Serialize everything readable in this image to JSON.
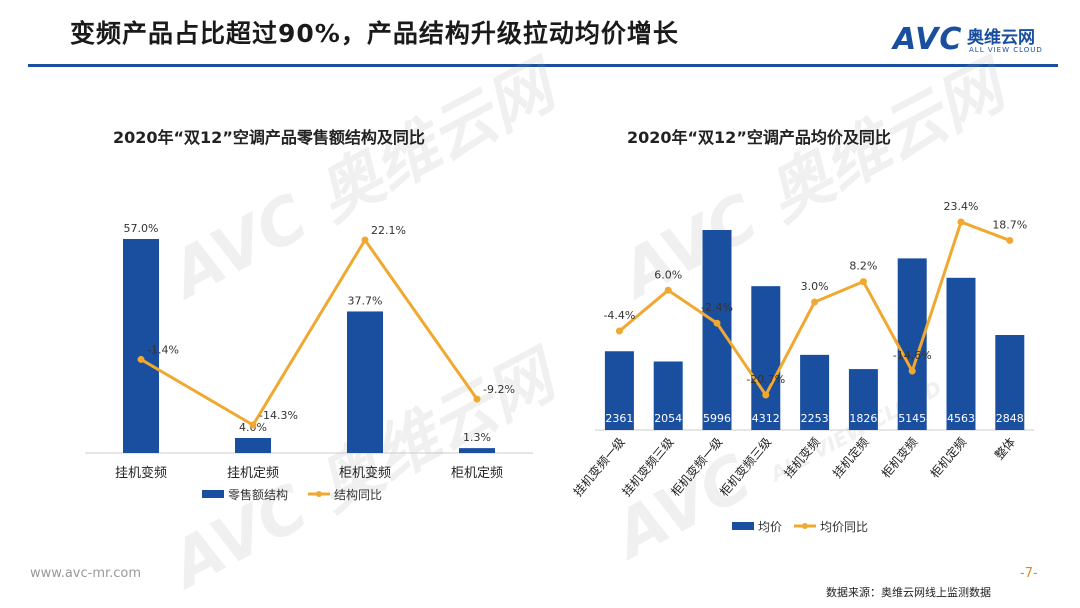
{
  "header": {
    "title": "变频产品占比超过90%，产品结构升级拉动均价增长"
  },
  "logo": {
    "brand": "AVC",
    "name_cn": "奥维云网",
    "name_en": "ALL VIEW CLOUD"
  },
  "watermark": {
    "brand": "AVC",
    "name_cn": "奥维云网",
    "name_en": "ALL VIEW CLOUD"
  },
  "colors": {
    "bar": "#1a4fa0",
    "line": "#f0a830",
    "accent": "#1a4fa0"
  },
  "footer": {
    "url": "www.avc-mr.com",
    "page": "-7-",
    "source": "数据来源：奥维云网线上监测数据"
  },
  "chart_data": [
    {
      "type": "bar",
      "title": "2020年“双12”空调产品零售额结构及同比",
      "categories": [
        "挂机变频",
        "挂机定频",
        "柜机变频",
        "柜机定频"
      ],
      "series": [
        {
          "name": "零售额结构",
          "kind": "bar",
          "values": [
            57.0,
            4.0,
            37.7,
            1.3
          ],
          "labels": [
            "57.0%",
            "4.0%",
            "37.7%",
            "1.3%"
          ]
        },
        {
          "name": "结构同比",
          "kind": "line",
          "values": [
            -1.4,
            -14.3,
            22.1,
            -9.2
          ],
          "labels": [
            "-1.4%",
            "-14.3%",
            "22.1%",
            "-9.2%"
          ]
        }
      ],
      "legend_position": "bottom"
    },
    {
      "type": "bar",
      "title": "2020年“双12”空调产品均价及同比",
      "categories": [
        "挂机变频一级",
        "挂机变频三级",
        "柜机变频一级",
        "柜机变频三级",
        "挂机变频",
        "挂机定频",
        "柜机变频",
        "柜机定频",
        "整体"
      ],
      "series": [
        {
          "name": "均价",
          "kind": "bar",
          "values": [
            2361,
            2054,
            5996,
            4312,
            2253,
            1826,
            5145,
            4563,
            2848
          ],
          "labels": [
            "2361",
            "2054",
            "5996",
            "4312",
            "2253",
            "1826",
            "5145",
            "4563",
            "2848"
          ]
        },
        {
          "name": "均价同比",
          "kind": "line",
          "values": [
            -4.4,
            6.0,
            -2.4,
            -20.7,
            3.0,
            8.2,
            -14.6,
            23.4,
            18.7
          ],
          "labels": [
            "-4.4%",
            "6.0%",
            "-2.4%",
            "-20.7%",
            "3.0%",
            "8.2%",
            "-14.6%",
            "23.4%",
            "18.7%"
          ]
        }
      ],
      "legend_position": "bottom"
    }
  ]
}
